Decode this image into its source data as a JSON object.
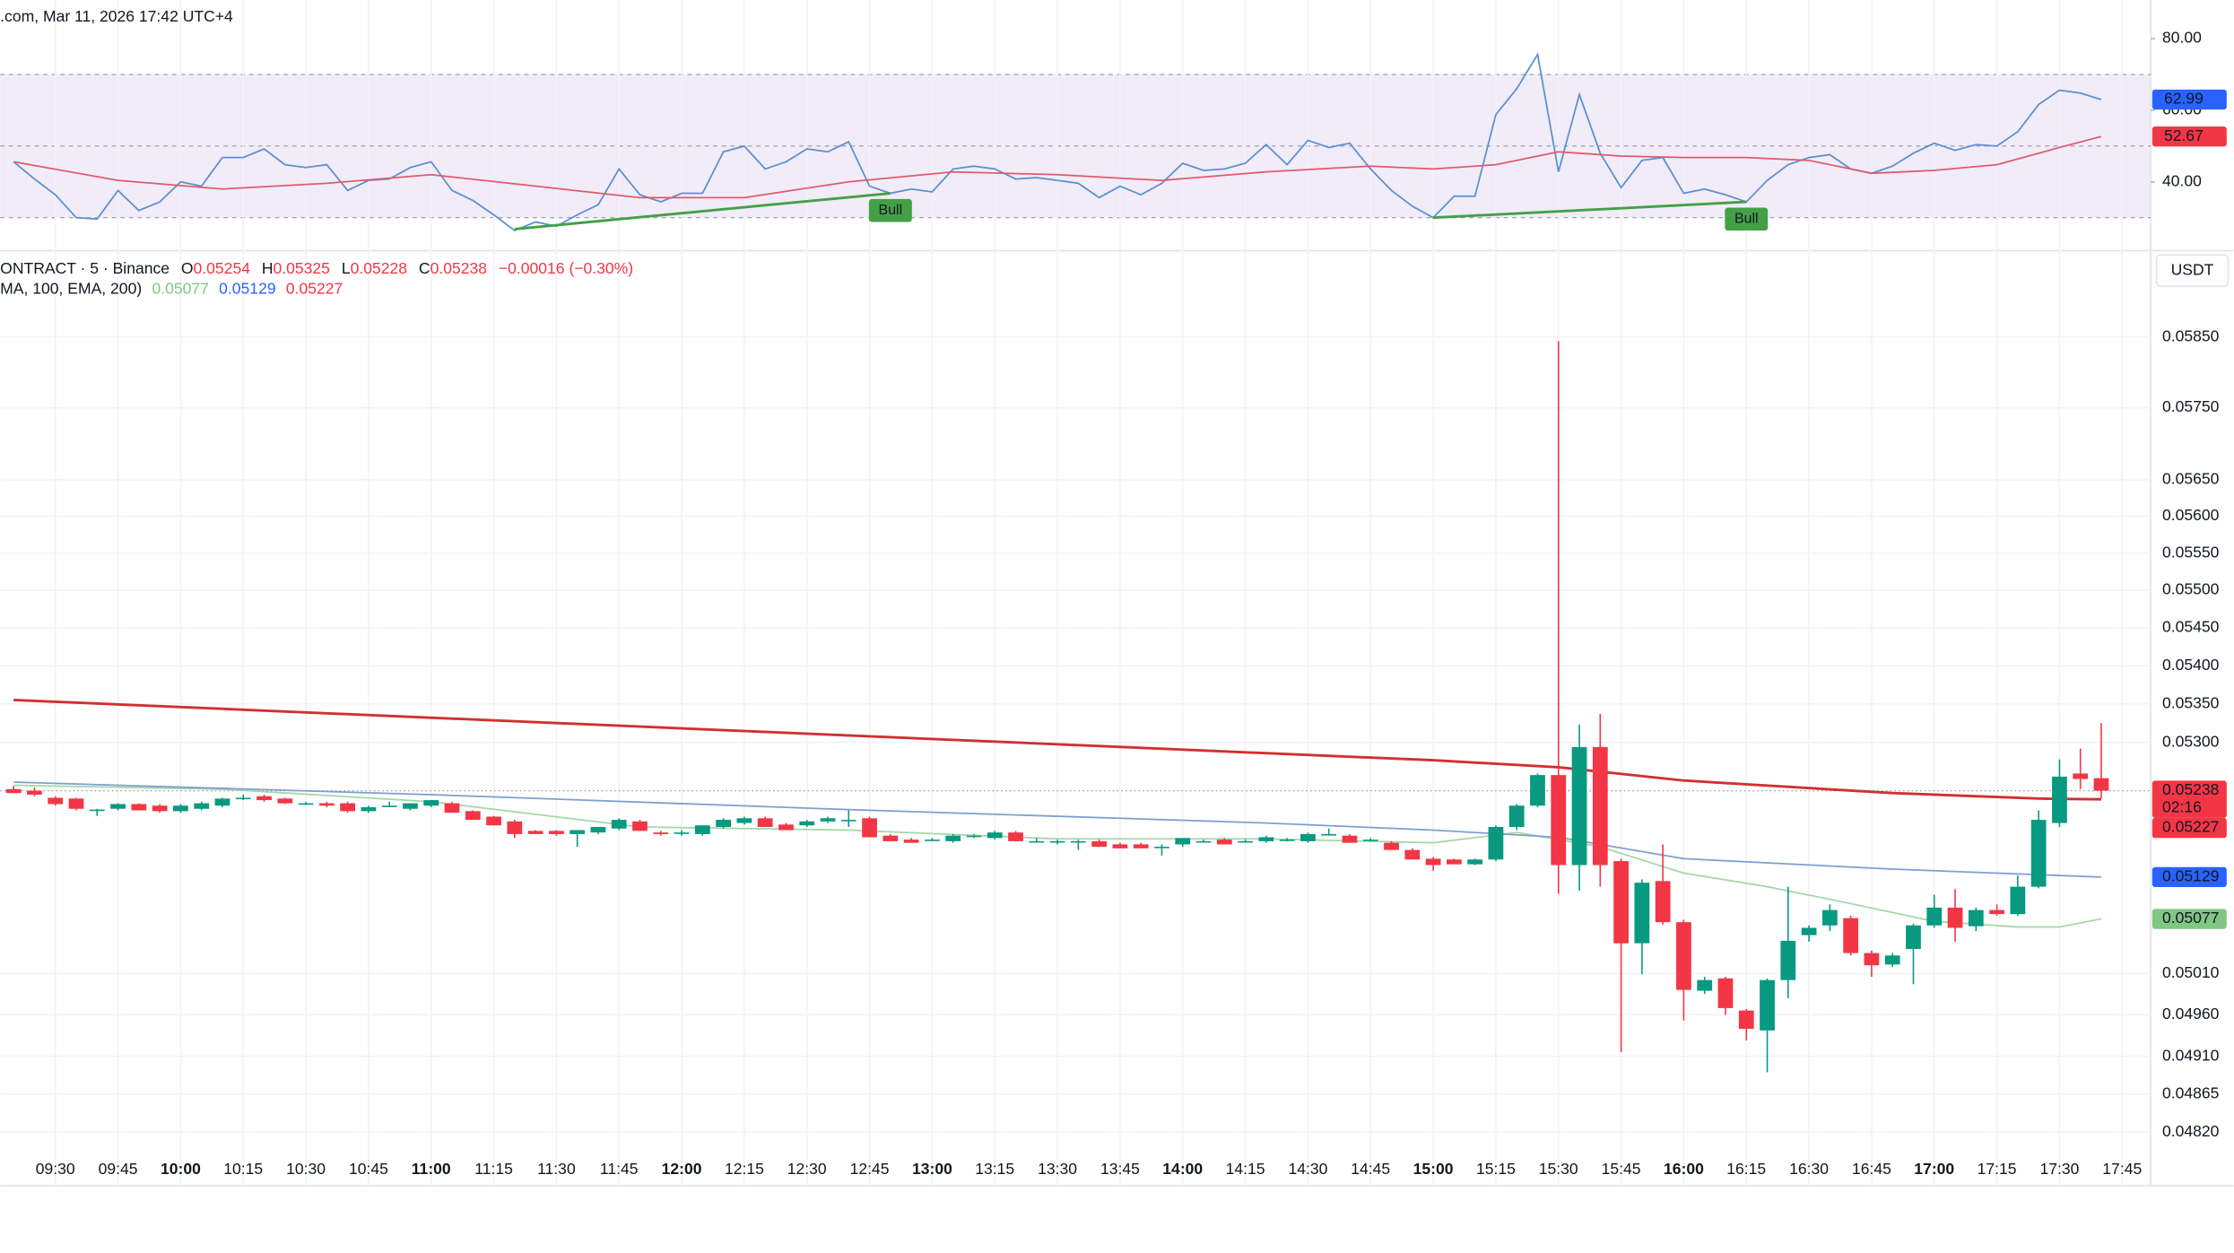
{
  "header": {
    "text": ".com, Mar 11, 2026 17:42 UTC+4"
  },
  "chart_data": [
    {
      "type": "line",
      "ylim": [
        22,
        90.8
      ],
      "yticks": [
        {
          "value": 40,
          "label": "40.00"
        },
        {
          "value": 60,
          "label": "60.00"
        },
        {
          "value": 80,
          "label": "80.00"
        }
      ],
      "bands": [
        30,
        50,
        70
      ],
      "band_fill": "#ede7f6",
      "series": [
        {
          "color": "#5b8fd1",
          "values": [
            45.6,
            40.8,
            36.4,
            30,
            29.6,
            37.6,
            32,
            34.4,
            40,
            38.8,
            46.8,
            46.8,
            49.2,
            44.8,
            44,
            44.8,
            37.6,
            40.4,
            40.8,
            44,
            45.6,
            37.6,
            34.8,
            30.8,
            26.4,
            28.8,
            27.6,
            30.8,
            33.6,
            43.6,
            36.4,
            34.4,
            36.8,
            36.8,
            48.4,
            50,
            43.6,
            45.6,
            49.2,
            48.4,
            51.2,
            38.8,
            36.8,
            38,
            37.2,
            43.6,
            44.4,
            43.6,
            40.8,
            41.2,
            40.4,
            39.6,
            35.6,
            38.8,
            36.4,
            39.6,
            45.2,
            43.2,
            43.6,
            45.2,
            50.4,
            44.8,
            51.6,
            49.6,
            50.8,
            43.6,
            37.6,
            33.2,
            30,
            36,
            36,
            58.8,
            66,
            75.6,
            42.8,
            64.4,
            48,
            38.4,
            46,
            46.8,
            36.8,
            38,
            36.4,
            34.4,
            40.4,
            44.8,
            46.8,
            47.6,
            43.6,
            42.4,
            44.4,
            48,
            50.8,
            48.8,
            50.4,
            50,
            54,
            61.6,
            65.6,
            64.8,
            62.99,
            null
          ]
        },
        {
          "color": "#e05a6b",
          "x": [
            0,
            5,
            10,
            15,
            20,
            25,
            30,
            35,
            40,
            45,
            50,
            55,
            60,
            65,
            68,
            71,
            74,
            77,
            80,
            83,
            86,
            89,
            92,
            95,
            98,
            100
          ],
          "values": [
            45.6,
            40.4,
            38,
            39.6,
            42,
            38.8,
            35.6,
            35.6,
            40,
            42.8,
            42,
            40.4,
            42.8,
            44.4,
            43.6,
            44.8,
            48.4,
            47.2,
            46.8,
            46.8,
            46,
            42.4,
            43.2,
            44.8,
            49.6,
            52.67
          ]
        }
      ],
      "divergences": [
        {
          "x": [
            24,
            42
          ],
          "values": [
            26.8,
            36.8
          ],
          "label": "Bull",
          "color": "#43a047"
        },
        {
          "x": [
            68,
            83
          ],
          "values": [
            30,
            34.4
          ],
          "label": "Bull",
          "color": "#43a047"
        }
      ]
    },
    {
      "type": "candlestick",
      "symbol": "ONTRACT · 5 · Binance",
      "ohlc_labels": [
        "O",
        "H",
        "L",
        "C"
      ],
      "change_label": "−0.00016 (−0.30%)",
      "indicator_label": "MA, 100, EMA, 200)",
      "currency": "USDT",
      "countdown": "02:16",
      "log": true,
      "grid": true,
      "up_color": "#089981",
      "down_color": "#f23645",
      "ylim": [
        0.04796,
        0.05968
      ],
      "yticks": [
        {
          "value": 0.0585,
          "label": "0.05850"
        },
        {
          "value": 0.0575,
          "label": "0.05750"
        },
        {
          "value": 0.0565,
          "label": "0.05650"
        },
        {
          "value": 0.056,
          "label": "0.05600"
        },
        {
          "value": 0.0555,
          "label": "0.05550"
        },
        {
          "value": 0.055,
          "label": "0.05500"
        },
        {
          "value": 0.0545,
          "label": "0.05450"
        },
        {
          "value": 0.054,
          "label": "0.05400"
        },
        {
          "value": 0.0535,
          "label": "0.05350"
        },
        {
          "value": 0.053,
          "label": "0.05300"
        },
        {
          "value": 0.0501,
          "label": "0.05010"
        },
        {
          "value": 0.0496,
          "label": "0.04960"
        },
        {
          "value": 0.0491,
          "label": "0.04910"
        },
        {
          "value": 0.04865,
          "label": "0.04865"
        },
        {
          "value": 0.0482,
          "label": "0.04820"
        }
      ],
      "categories": [
        null,
        null,
        "09:30",
        null,
        null,
        "09:45",
        null,
        null,
        "10:00",
        null,
        null,
        "10:15",
        null,
        null,
        "10:30",
        null,
        null,
        "10:45",
        null,
        null,
        "11:00",
        null,
        null,
        "11:15",
        null,
        null,
        "11:30",
        null,
        null,
        "11:45",
        null,
        null,
        "12:00",
        null,
        null,
        "12:15",
        null,
        null,
        "12:30",
        null,
        null,
        "12:45",
        null,
        null,
        "13:00",
        null,
        null,
        "13:15",
        null,
        null,
        "13:30",
        null,
        null,
        "13:45",
        null,
        null,
        "14:00",
        null,
        null,
        "14:15",
        null,
        null,
        "14:30",
        null,
        null,
        "14:45",
        null,
        null,
        "15:00",
        null,
        null,
        "15:15",
        null,
        null,
        "15:30",
        null,
        null,
        "15:45",
        null,
        null,
        "16:00",
        null,
        null,
        "16:15",
        null,
        null,
        "16:30",
        null,
        null,
        "16:45",
        null,
        null,
        "17:00",
        null,
        null,
        "17:15",
        null,
        null,
        "17:30",
        null,
        null,
        "17:45"
      ],
      "ohlc": [
        [
          0.0524,
          0.05244,
          0.05235,
          0.05235
        ],
        [
          0.05238,
          0.05242,
          0.05231,
          0.05233
        ],
        [
          0.05229,
          0.05231,
          0.05219,
          0.05221
        ],
        [
          0.05228,
          0.05229,
          0.05213,
          0.05215
        ],
        [
          0.05213,
          0.05215,
          0.05206,
          0.05214
        ],
        [
          0.05215,
          0.05222,
          0.05213,
          0.05221
        ],
        [
          0.05221,
          0.05222,
          0.05213,
          0.05213
        ],
        [
          0.05219,
          0.05221,
          0.0521,
          0.05212
        ],
        [
          0.05212,
          0.05221,
          0.0521,
          0.05219
        ],
        [
          0.05215,
          0.05224,
          0.05213,
          0.05222
        ],
        [
          0.05219,
          0.05229,
          0.05217,
          0.05228
        ],
        [
          0.05229,
          0.05233,
          0.05226,
          0.05229
        ],
        [
          0.05231,
          0.05233,
          0.05224,
          0.05226
        ],
        [
          0.05228,
          0.05229,
          0.05221,
          0.05222
        ],
        [
          0.05222,
          0.05224,
          0.0522,
          0.05222
        ],
        [
          0.05222,
          0.05224,
          0.05217,
          0.05219
        ],
        [
          0.05222,
          0.05224,
          0.0521,
          0.05212
        ],
        [
          0.05212,
          0.05219,
          0.0521,
          0.05217
        ],
        [
          0.05219,
          0.05224,
          0.05217,
          0.05219
        ],
        [
          0.05215,
          0.05222,
          0.05213,
          0.05222
        ],
        [
          0.05219,
          0.05226,
          0.05217,
          0.05226
        ],
        [
          0.05222,
          0.05224,
          0.0521,
          0.0521
        ],
        [
          0.05212,
          0.05213,
          0.05201,
          0.05201
        ],
        [
          0.05205,
          0.05206,
          0.05194,
          0.05194
        ],
        [
          0.05199,
          0.05201,
          0.05178,
          0.05183
        ],
        [
          0.05187,
          0.05188,
          0.05183,
          0.05183
        ],
        [
          0.05187,
          0.05188,
          0.05181,
          0.05183
        ],
        [
          0.05183,
          0.05187,
          0.05167,
          0.05188
        ],
        [
          0.05185,
          0.05192,
          0.05183,
          0.05192
        ],
        [
          0.0519,
          0.05203,
          0.05188,
          0.05201
        ],
        [
          0.05199,
          0.05201,
          0.05187,
          0.05187
        ],
        [
          0.05185,
          0.05187,
          0.05181,
          0.05183
        ],
        [
          0.05185,
          0.05188,
          0.05181,
          0.05185
        ],
        [
          0.05183,
          0.05194,
          0.05181,
          0.05194
        ],
        [
          0.05192,
          0.05203,
          0.0519,
          0.05201
        ],
        [
          0.05197,
          0.05205,
          0.05195,
          0.05203
        ],
        [
          0.05203,
          0.05205,
          0.05192,
          0.05192
        ],
        [
          0.05195,
          0.05197,
          0.05188,
          0.05188
        ],
        [
          0.05194,
          0.05201,
          0.05192,
          0.05199
        ],
        [
          0.05199,
          0.05205,
          0.05197,
          0.05203
        ],
        [
          0.05201,
          0.05213,
          0.05192,
          0.05201
        ],
        [
          0.05203,
          0.05205,
          0.05179,
          0.05179
        ],
        [
          0.05181,
          0.05183,
          0.05174,
          0.05174
        ],
        [
          0.05176,
          0.05178,
          0.05172,
          0.05172
        ],
        [
          0.05176,
          0.05178,
          0.05174,
          0.05176
        ],
        [
          0.05174,
          0.05183,
          0.05172,
          0.05181
        ],
        [
          0.05181,
          0.05183,
          0.05178,
          0.05181
        ],
        [
          0.05178,
          0.05187,
          0.05176,
          0.05185
        ],
        [
          0.05185,
          0.05187,
          0.05174,
          0.05174
        ],
        [
          0.05174,
          0.05178,
          0.05172,
          0.05174
        ],
        [
          0.05174,
          0.05176,
          0.0517,
          0.05174
        ],
        [
          0.05174,
          0.05176,
          0.05163,
          0.05174
        ],
        [
          0.05174,
          0.05176,
          0.05167,
          0.05167
        ],
        [
          0.0517,
          0.05172,
          0.05165,
          0.05165
        ],
        [
          0.0517,
          0.05172,
          0.05165,
          0.05165
        ],
        [
          0.05167,
          0.0517,
          0.05156,
          0.05167
        ],
        [
          0.0517,
          0.05178,
          0.05167,
          0.05178
        ],
        [
          0.05174,
          0.05176,
          0.05172,
          0.05174
        ],
        [
          0.05176,
          0.05178,
          0.0517,
          0.0517
        ],
        [
          0.05174,
          0.05176,
          0.05172,
          0.05174
        ],
        [
          0.05174,
          0.05181,
          0.05172,
          0.05179
        ],
        [
          0.05176,
          0.05178,
          0.05174,
          0.05176
        ],
        [
          0.05174,
          0.05185,
          0.05172,
          0.05183
        ],
        [
          0.05183,
          0.0519,
          0.05181,
          0.05183
        ],
        [
          0.05181,
          0.05183,
          0.05172,
          0.05172
        ],
        [
          0.05176,
          0.05178,
          0.05174,
          0.05176
        ],
        [
          0.05172,
          0.05174,
          0.05163,
          0.05163
        ],
        [
          0.05163,
          0.05165,
          0.05151,
          0.05151
        ],
        [
          0.05152,
          0.05154,
          0.05137,
          0.05144
        ],
        [
          0.05151,
          0.05152,
          0.05145,
          0.05145
        ],
        [
          0.05145,
          0.05152,
          0.05144,
          0.05151
        ],
        [
          0.05151,
          0.05194,
          0.05149,
          0.05192
        ],
        [
          0.05192,
          0.05221,
          0.05188,
          0.05219
        ],
        [
          0.05219,
          0.0526,
          0.05217,
          0.05258
        ],
        [
          0.05258,
          0.05844,
          0.05108,
          0.05144
        ],
        [
          0.05144,
          0.05323,
          0.05112,
          0.05294
        ],
        [
          0.05294,
          0.05337,
          0.05117,
          0.05144
        ],
        [
          0.05149,
          0.05152,
          0.04915,
          0.05047
        ],
        [
          0.05047,
          0.05126,
          0.05009,
          0.05122
        ],
        [
          0.05124,
          0.0517,
          0.0507,
          0.05073
        ],
        [
          0.05073,
          0.05076,
          0.04953,
          0.0499
        ],
        [
          0.04989,
          0.05006,
          0.04985,
          0.05002
        ],
        [
          0.05004,
          0.05006,
          0.0496,
          0.04968
        ],
        [
          0.04965,
          0.04967,
          0.04929,
          0.04943
        ],
        [
          0.04941,
          0.05004,
          0.04891,
          0.05002
        ],
        [
          0.05002,
          0.05117,
          0.0498,
          0.0505
        ],
        [
          0.05057,
          0.05069,
          0.05049,
          0.05066
        ],
        [
          0.05069,
          0.05095,
          0.05062,
          0.05088
        ],
        [
          0.05078,
          0.05081,
          0.05032,
          0.05035
        ],
        [
          0.05035,
          0.05038,
          0.05006,
          0.0502
        ],
        [
          0.05021,
          0.05035,
          0.05018,
          0.05032
        ],
        [
          0.0504,
          0.05071,
          0.04997,
          0.05069
        ],
        [
          0.05069,
          0.05107,
          0.05066,
          0.05091
        ],
        [
          0.05091,
          0.05114,
          0.05049,
          0.05066
        ],
        [
          0.05068,
          0.05091,
          0.05062,
          0.05088
        ],
        [
          0.05088,
          0.05095,
          0.05081,
          0.05083
        ],
        [
          0.05083,
          0.05131,
          0.05081,
          0.05117
        ],
        [
          0.05117,
          0.05213,
          0.05115,
          0.05201
        ],
        [
          0.05197,
          0.05278,
          0.05192,
          0.05256
        ],
        [
          0.0526,
          0.05292,
          0.0524,
          0.05253
        ],
        [
          0.05254,
          0.05325,
          0.05228,
          0.05238
        ],
        null
      ],
      "lines": [
        {
          "color": "#a5d6a7",
          "badge_color": "#81c784",
          "x": [
            0,
            10,
            20,
            30,
            40,
            50,
            60,
            68,
            72,
            76,
            80,
            84,
            88,
            92,
            96,
            98,
            100
          ],
          "values": [
            0.05245,
            0.0524,
            0.05224,
            0.05192,
            0.05188,
            0.05177,
            0.05177,
            0.05172,
            0.05185,
            0.05167,
            0.05134,
            0.05117,
            0.05096,
            0.05074,
            0.05067,
            0.05067,
            0.05077
          ]
        },
        {
          "color": "#7e9fcf",
          "badge_color": "#2962ff",
          "x": [
            0,
            20,
            40,
            60,
            68,
            74,
            80,
            90,
            100
          ],
          "values": [
            0.05249,
            0.05233,
            0.05214,
            0.05197,
            0.05188,
            0.05179,
            0.05152,
            0.05139,
            0.05129
          ]
        },
        {
          "color": "#d32f2f",
          "badge_color": "#f23645",
          "x": [
            0,
            68,
            74,
            80,
            90,
            97,
            100
          ],
          "values": [
            0.05355,
            0.05277,
            0.05268,
            0.05251,
            0.05235,
            0.05228,
            0.05227
          ]
        }
      ]
    }
  ]
}
